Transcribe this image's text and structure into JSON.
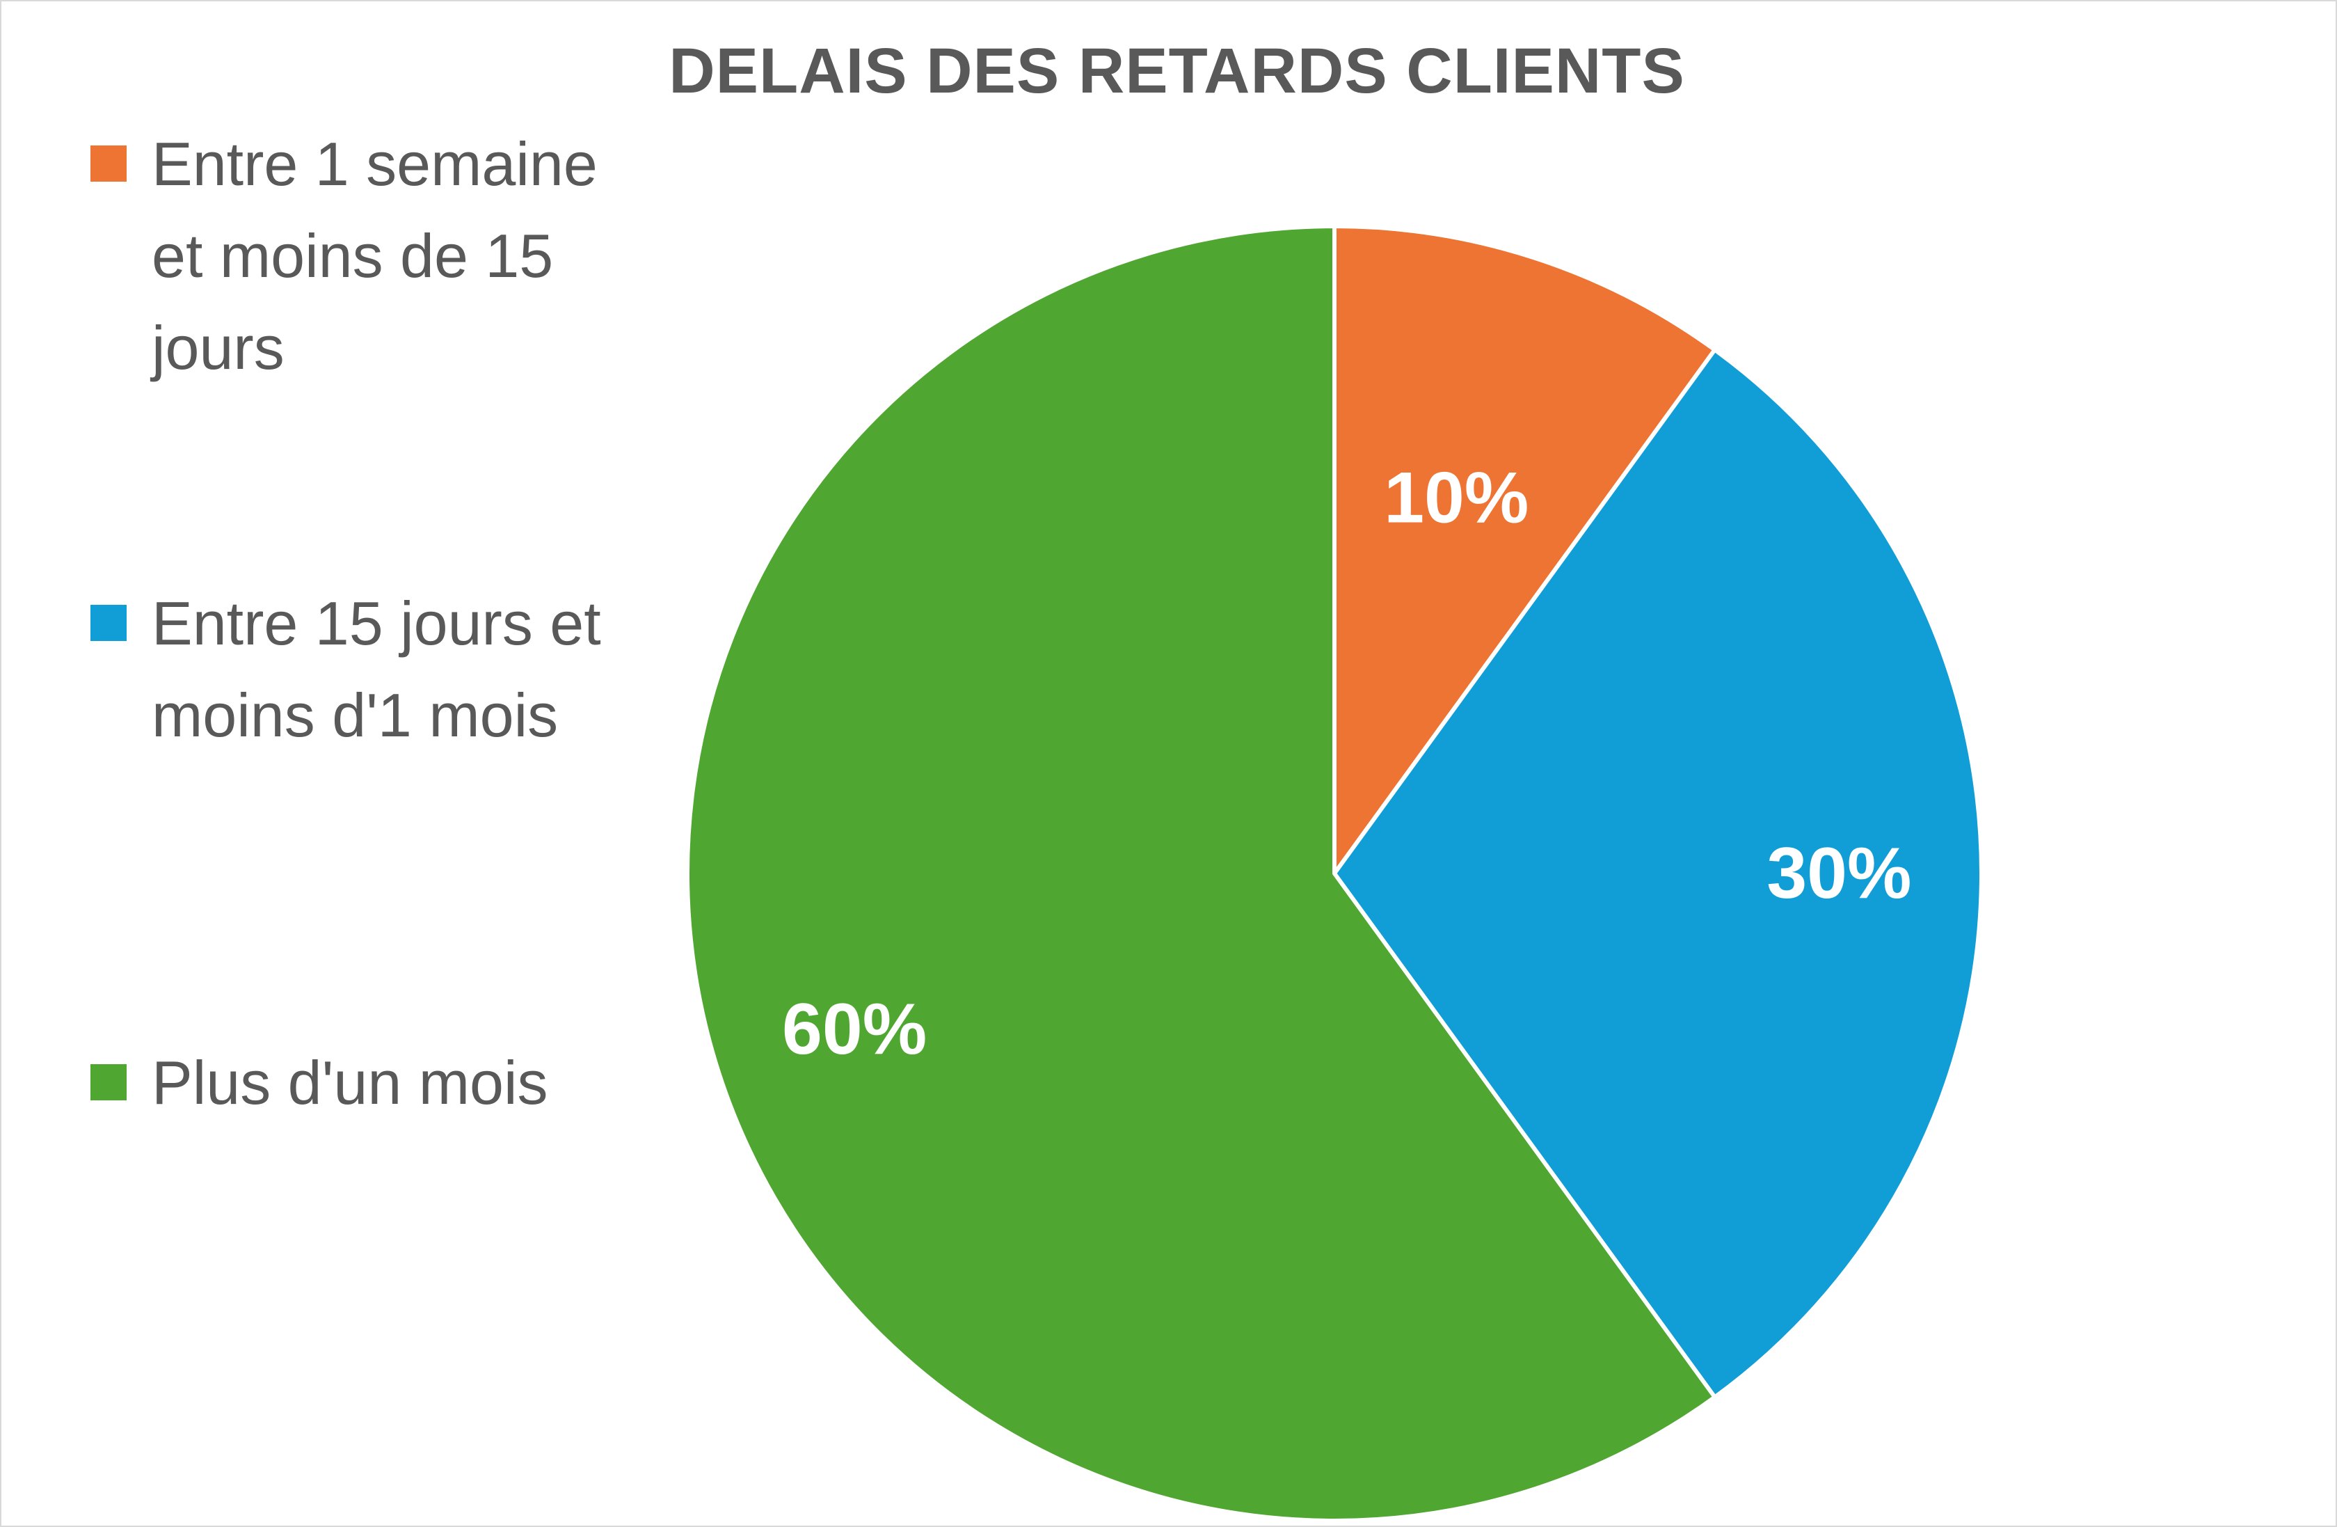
{
  "chart_data": {
    "type": "pie",
    "title": "DELAIS DES RETARDS CLIENTS",
    "categories": [
      "Entre 1 semaine et moins de 15 jours",
      "Entre 15 jours et moins d'1 mois",
      "Plus d'un mois"
    ],
    "values": [
      10,
      30,
      60
    ],
    "data_labels": [
      "10%",
      "30%",
      "60%"
    ],
    "colors": [
      "#ED7433",
      "#119ED7",
      "#4FA731"
    ],
    "legend": "left"
  }
}
